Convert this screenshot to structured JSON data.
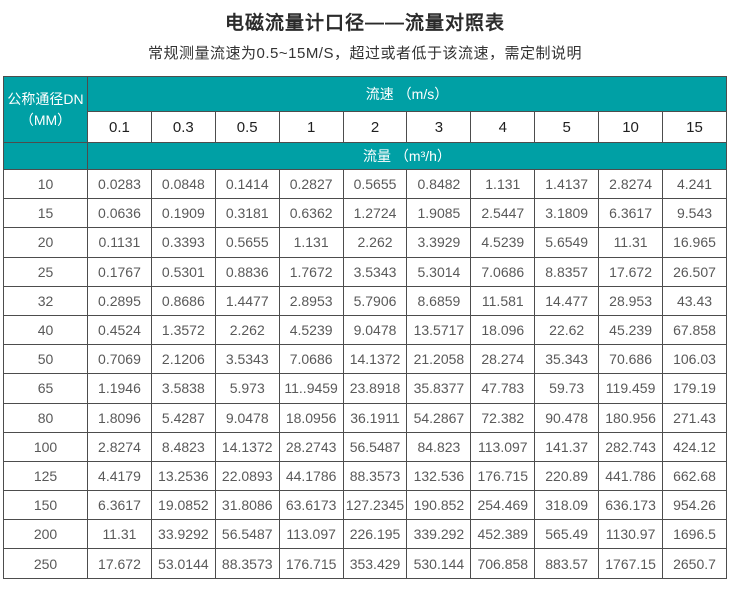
{
  "page": {
    "title": "电磁流量计口径——流量对照表",
    "subtitle": "常规测量流速为0.5~15M/S，超过或者低于该流速，需定制说明"
  },
  "table": {
    "corner_header_line1": "公称通径DN",
    "corner_header_line2": "（MM）",
    "velocity_header": "流速 （m/s）",
    "flow_header": "流量 （m³/h）",
    "velocities": [
      "0.1",
      "0.3",
      "0.5",
      "1",
      "2",
      "3",
      "4",
      "5",
      "10",
      "15"
    ],
    "rows": [
      {
        "dn": "10",
        "values": [
          "0.0283",
          "0.0848",
          "0.1414",
          "0.2827",
          "0.5655",
          "0.8482",
          "1.131",
          "1.4137",
          "2.8274",
          "4.241"
        ]
      },
      {
        "dn": "15",
        "values": [
          "0.0636",
          "0.1909",
          "0.3181",
          "0.6362",
          "1.2724",
          "1.9085",
          "2.5447",
          "3.1809",
          "6.3617",
          "9.543"
        ]
      },
      {
        "dn": "20",
        "values": [
          "0.1131",
          "0.3393",
          "0.5655",
          "1.131",
          "2.262",
          "3.3929",
          "4.5239",
          "5.6549",
          "11.31",
          "16.965"
        ]
      },
      {
        "dn": "25",
        "values": [
          "0.1767",
          "0.5301",
          "0.8836",
          "1.7672",
          "3.5343",
          "5.3014",
          "7.0686",
          "8.8357",
          "17.672",
          "26.507"
        ]
      },
      {
        "dn": "32",
        "values": [
          "0.2895",
          "0.8686",
          "1.4477",
          "2.8953",
          "5.7906",
          "8.6859",
          "11.581",
          "14.477",
          "28.953",
          "43.43"
        ]
      },
      {
        "dn": "40",
        "values": [
          "0.4524",
          "1.3572",
          "2.262",
          "4.5239",
          "9.0478",
          "13.5717",
          "18.096",
          "22.62",
          "45.239",
          "67.858"
        ]
      },
      {
        "dn": "50",
        "values": [
          "0.7069",
          "2.1206",
          "3.5343",
          "7.0686",
          "14.1372",
          "21.2058",
          "28.274",
          "35.343",
          "70.686",
          "106.03"
        ]
      },
      {
        "dn": "65",
        "values": [
          "1.1946",
          "3.5838",
          "5.973",
          "11..9459",
          "23.8918",
          "35.8377",
          "47.783",
          "59.73",
          "119.459",
          "179.19"
        ]
      },
      {
        "dn": "80",
        "values": [
          "1.8096",
          "5.4287",
          "9.0478",
          "18.0956",
          "36.1911",
          "54.2867",
          "72.382",
          "90.478",
          "180.956",
          "271.43"
        ]
      },
      {
        "dn": "100",
        "values": [
          "2.8274",
          "8.4823",
          "14.1372",
          "28.2743",
          "56.5487",
          "84.823",
          "113.097",
          "141.37",
          "282.743",
          "424.12"
        ]
      },
      {
        "dn": "125",
        "values": [
          "4.4179",
          "13.2536",
          "22.0893",
          "44.1786",
          "88.3573",
          "132.536",
          "176.715",
          "220.89",
          "441.786",
          "662.68"
        ]
      },
      {
        "dn": "150",
        "values": [
          "6.3617",
          "19.0852",
          "31.8086",
          "63.6173",
          "127.2345",
          "190.852",
          "254.469",
          "318.09",
          "636.173",
          "954.26"
        ]
      },
      {
        "dn": "200",
        "values": [
          "11.31",
          "33.9292",
          "56.5487",
          "113.097",
          "226.195",
          "339.292",
          "452.389",
          "565.49",
          "1130.97",
          "1696.5"
        ]
      },
      {
        "dn": "250",
        "values": [
          "17.672",
          "53.0144",
          "88.3573",
          "176.715",
          "353.429",
          "530.144",
          "706.858",
          "883.57",
          "1767.15",
          "2650.7"
        ]
      }
    ]
  },
  "colors": {
    "header_bg": "#00A0A5",
    "header_text": "#ffffff",
    "border": "#4d4d4d",
    "cell_text": "#595959",
    "velocity_text": "#1f1f1f"
  }
}
